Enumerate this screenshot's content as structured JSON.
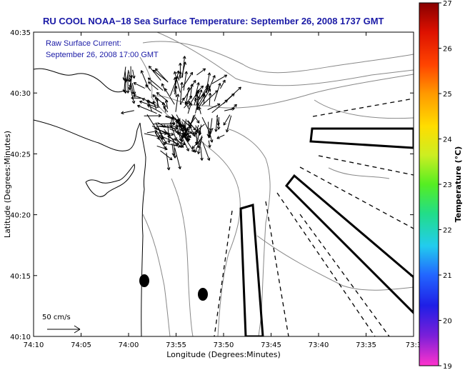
{
  "title": "RU COOL  NOAA−18  Sea Surface Temperature:  September 26, 2008 1737 GMT",
  "legend": {
    "line1": "Raw Surface Current:",
    "line2": "September 26, 2008 17:00 GMT",
    "scale_label": "50 cm/s"
  },
  "chart_data": {
    "type": "map",
    "title": "RU COOL  NOAA−18  Sea Surface Temperature:  September 26, 2008 1737 GMT",
    "xlabel": "Longitude (Degrees:Minutes)",
    "ylabel": "Latitude (Degrees:Minutes)",
    "x_ticks": [
      "74:10",
      "74:05",
      "74:00",
      "73:55",
      "73:50",
      "73:45",
      "73:40",
      "73:35",
      "73:3"
    ],
    "y_ticks": [
      "40:35",
      "40:30",
      "40:25",
      "40:20",
      "40:15",
      "40:10"
    ],
    "colorbar": {
      "label": "Temperature (°C)",
      "min": 19,
      "max": 27,
      "ticks": [
        "27",
        "26",
        "25",
        "24",
        "23",
        "22",
        "21",
        "20",
        "19"
      ],
      "colors": [
        "#ff33cc",
        "#7a1fd9",
        "#1f1fe6",
        "#2266ff",
        "#22ccee",
        "#22dd88",
        "#55ee22",
        "#ccee22",
        "#ffdd00",
        "#ff9900",
        "#ff4400",
        "#dd1100",
        "#880000"
      ]
    }
  },
  "colors": {
    "title": "#1a1aa6",
    "contour": "#888888",
    "coast": "#000000"
  }
}
